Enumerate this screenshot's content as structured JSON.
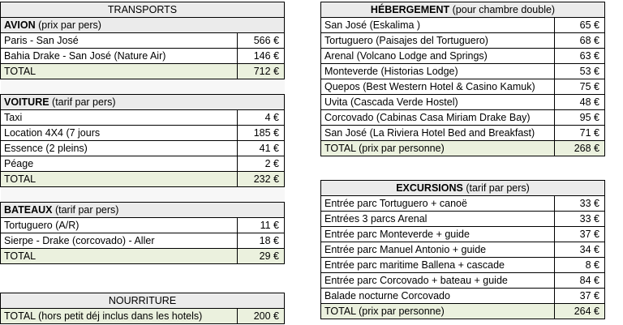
{
  "transports": {
    "title": "TRANSPORTS",
    "avion": {
      "label_bold": "AVION",
      "label_rest": " (prix par pers)",
      "rows": [
        {
          "label": "Paris - San José",
          "value": "566 €"
        },
        {
          "label": "Bahia Drake - San José (Nature Air)",
          "value": "146 €"
        }
      ],
      "total_label": "TOTAL",
      "total_value": "712 €"
    },
    "voiture": {
      "label_bold": "VOITURE",
      "label_rest": " (tarif par pers)",
      "rows": [
        {
          "label": "Taxi",
          "value": "4 €"
        },
        {
          "label": "Location 4X4 (7 jours",
          "value": "185 €"
        },
        {
          "label": "Essence (2 pleins)",
          "value": "41 €"
        },
        {
          "label": "Péage",
          "value": "2 €"
        }
      ],
      "total_label": "TOTAL",
      "total_value": "232 €"
    },
    "bateaux": {
      "label_bold": "BATEAUX",
      "label_rest": " (tarif par pers)",
      "rows": [
        {
          "label": "Tortuguero (A/R)",
          "value": "11 €"
        },
        {
          "label": "Sierpe - Drake (corcovado) - Aller",
          "value": "18 €"
        }
      ],
      "total_label": "TOTAL",
      "total_value": "29 €"
    }
  },
  "nourriture": {
    "title": "NOURRITURE",
    "total_label": "TOTAL (hors petit déj inclus dans les hotels)",
    "total_value": "200 €"
  },
  "hebergement": {
    "title_bold": "HÉBERGEMENT",
    "title_rest": " (pour chambre double)",
    "rows": [
      {
        "label": "San José (Eskalima )",
        "value": "65 €"
      },
      {
        "label": "Tortuguero (Paisajes del Tortuguero)",
        "value": "68 €"
      },
      {
        "label": "Arenal (Volcano Lodge and Springs)",
        "value": "63 €"
      },
      {
        "label": "Monteverde (Historias Lodge)",
        "value": "53 €"
      },
      {
        "label": "Quepos (Best Western Hotel & Casino Kamuk)",
        "value": "75 €"
      },
      {
        "label": "Uvita (Cascada Verde Hostel)",
        "value": "48 €"
      },
      {
        "label": "Corcovado (Cabinas Casa Miriam Drake Bay)",
        "value": "95 €"
      },
      {
        "label": "San José (La Riviera Hotel Bed and Breakfast)",
        "value": "71 €"
      }
    ],
    "total_label": "TOTAL (prix par personne)",
    "total_value": "268 €"
  },
  "excursions": {
    "title_bold": "EXCURSIONS",
    "title_rest": "  (tarif par pers)",
    "rows": [
      {
        "label": "Entrée parc Tortuguero + canoë",
        "value": "33 €"
      },
      {
        "label": "Entrées 3 parcs Arenal",
        "value": "33 €"
      },
      {
        "label": "Entrée parc Monteverde + guide",
        "value": "37 €"
      },
      {
        "label": "Entrée parc Manuel Antonio + guide",
        "value": "34 €"
      },
      {
        "label": "Entrée parc maritime Ballena + cascade",
        "value": "8 €"
      },
      {
        "label": "Entrée parc Corcovado + bateau + guide",
        "value": "84 €"
      },
      {
        "label": "Balade nocturne Corcovado",
        "value": "37 €"
      }
    ],
    "total_label": "TOTAL  (prix par personne)",
    "total_value": "264 €"
  }
}
